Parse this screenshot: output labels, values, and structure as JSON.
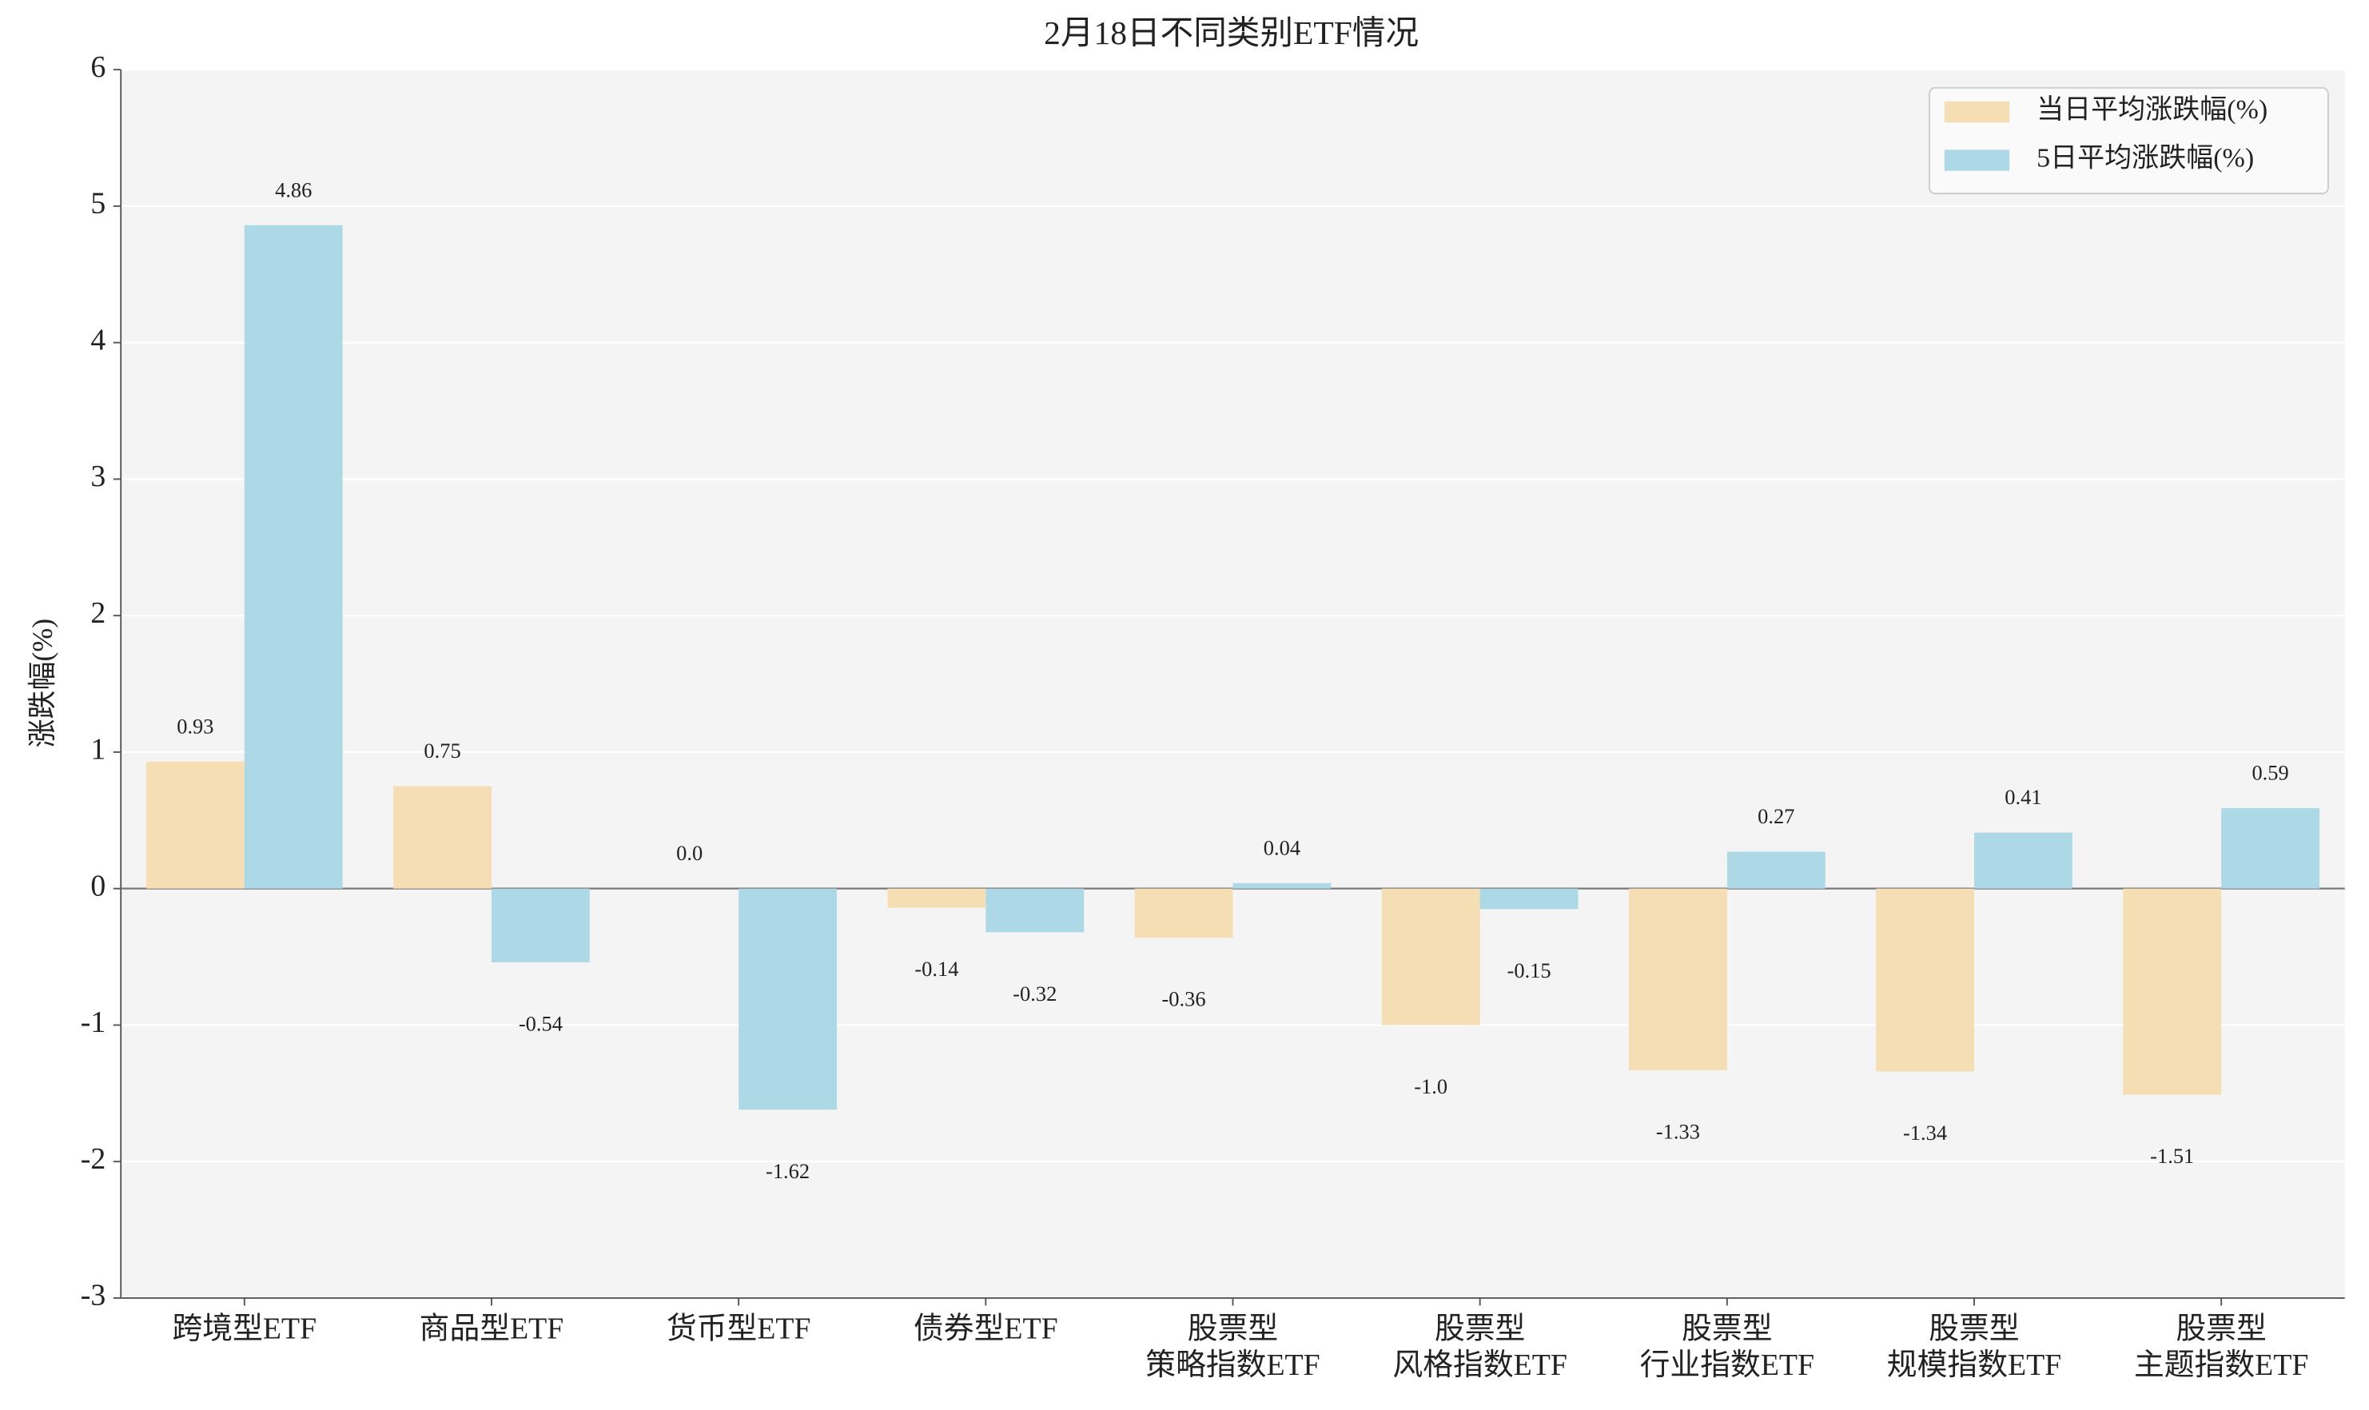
{
  "chart_data": {
    "type": "bar",
    "title": "2月18日不同类别ETF情况",
    "y_label": "涨跌幅(%)",
    "categories": [
      "跨境型ETF",
      "商品型ETF",
      "货币型ETF",
      "债券型ETF",
      "股票型\n策略指数ETF",
      "股票型\n风格指数ETF",
      "股票型\n行业指数ETF",
      "股票型\n规模指数ETF",
      "股票型\n主题指数ETF"
    ],
    "series": [
      {
        "name": "当日平均涨跌幅(%)",
        "color": "#f5deb3",
        "values": [
          0.93,
          0.75,
          0,
          -0.14,
          -0.36,
          -1,
          -1.33,
          -1.34,
          -1.51
        ],
        "value_labels": [
          "0.93",
          "0.75",
          "0.0",
          "-0.14",
          "-0.36",
          "-1.0",
          "-1.33",
          "-1.34",
          "-1.51"
        ]
      },
      {
        "name": "5日平均涨跌幅(%)",
        "color": "#add8e6",
        "values": [
          4.86,
          -0.54,
          -1.62,
          -0.32,
          0.04,
          -0.15,
          0.27,
          0.41,
          0.59
        ],
        "value_labels": [
          "4.86",
          "-0.54",
          "-1.62",
          "-0.32",
          "0.04",
          "-0.15",
          "0.27",
          "0.41",
          "0.59"
        ]
      }
    ],
    "ylim": [
      -3,
      6
    ],
    "yticks": [
      -3,
      -2,
      -1,
      0,
      1,
      2,
      3,
      4,
      5,
      6
    ],
    "grid": true,
    "legend": "upper right"
  }
}
